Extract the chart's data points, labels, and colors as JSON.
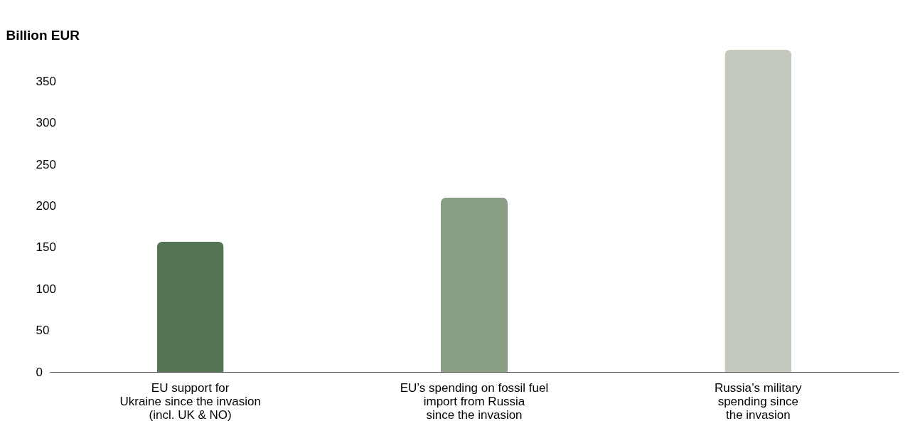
{
  "chart_data": {
    "type": "bar",
    "ylabel": "Billion EUR",
    "categories": [
      "EU support for\nUkraine since the invasion\n(incl. UK & NO)",
      "EU’s spending on fossil fuel\nimport from Russia\nsince the invasion",
      "Russia’s military\nspending since\nthe invasion"
    ],
    "values": [
      157,
      210,
      388
    ],
    "colors": [
      "#547553",
      "#8a9e85",
      "#c3c9bd"
    ],
    "ylim": [
      0,
      388
    ],
    "yticks": [
      0,
      50,
      100,
      150,
      200,
      250,
      300,
      350
    ],
    "grid": false
  }
}
